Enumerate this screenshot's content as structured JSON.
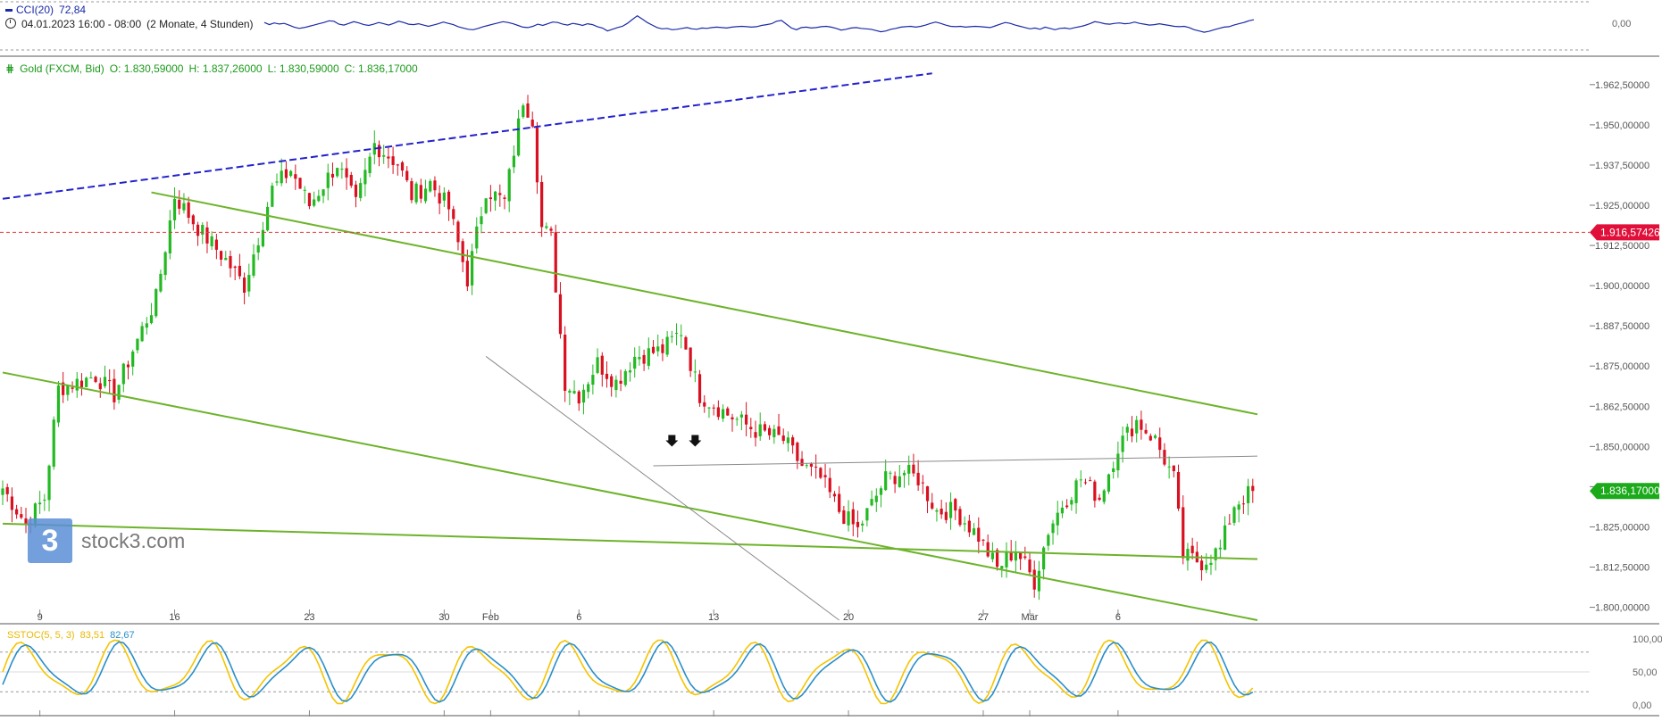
{
  "cci": {
    "name": "CCI(20)",
    "value": "72,84",
    "zero_label": "0,00",
    "range": "04.01.2023 16:00 - 08:00",
    "span": "(2 Monate, 4 Stunden)",
    "values": [
      40,
      15,
      35,
      22,
      30,
      8,
      -15,
      -30,
      -20,
      -5,
      10,
      25,
      40,
      60,
      55,
      20,
      10,
      30,
      50,
      35,
      15,
      5,
      20,
      40,
      25,
      10,
      30,
      55,
      40,
      20,
      15,
      25,
      10,
      -5,
      10,
      25,
      45,
      30,
      15,
      -10,
      -25,
      -40,
      -45,
      -30,
      -10,
      5,
      20,
      35,
      50,
      40,
      25,
      5,
      -15,
      -20,
      -5,
      20,
      5,
      25,
      45,
      40,
      20,
      10,
      30,
      20,
      5,
      25,
      15,
      -10,
      -25,
      -60,
      -40,
      -20,
      -5,
      30,
      75,
      120,
      80,
      40,
      10,
      -20,
      -35,
      -30,
      -45,
      -40,
      -30,
      -20,
      -35,
      -40,
      -25,
      -30,
      -20,
      -15,
      -20,
      -25,
      -15,
      -10,
      -5,
      -10,
      -15,
      -10,
      5,
      15,
      25,
      55,
      65,
      20,
      -25,
      -45,
      -20,
      -15,
      -25,
      -20,
      -10,
      -5,
      -15,
      -30,
      -50,
      -40,
      -25,
      -20,
      -30,
      -35,
      -40,
      -55,
      -70,
      -60,
      -40,
      -30,
      -15,
      -10,
      -5,
      -15,
      -5,
      10,
      30,
      45,
      30,
      10,
      -5,
      -10,
      -5,
      -15,
      -10,
      -5,
      -10,
      -15,
      -20,
      0,
      20,
      40,
      30,
      10,
      -5,
      -20,
      -35,
      -25,
      -40,
      -15,
      -30,
      -45,
      -30,
      -25,
      -35,
      -20,
      -10,
      5,
      25,
      50,
      40,
      25,
      20,
      30,
      35,
      25,
      30,
      45,
      30,
      20,
      10,
      15,
      25,
      15,
      5,
      -5,
      -10,
      -5,
      -20,
      -45,
      -60,
      -75,
      -65,
      -45,
      -30,
      -15,
      -10,
      10,
      25,
      40,
      60,
      72.84
    ],
    "ylim": [
      -200,
      200
    ]
  },
  "main": {
    "instrument": "Gold (FXCM, Bid)",
    "o": "O: 1.830,59000",
    "h": "H: 1.837,26000",
    "l": "L: 1.830,59000",
    "c": "C: 1.836,17000"
  },
  "stoch": {
    "name": "SSTOC(5, 5, 3)",
    "k_value": "83,51",
    "d_value": "82,67"
  },
  "brand": {
    "logo_text": "3",
    "text": "stock3.com"
  },
  "colors": {
    "up": "#22b922",
    "down": "#d81020",
    "cci": "#1a2aa8",
    "trend_green": "#6db32b",
    "trend_blue": "#2222cc",
    "trend_gray": "#8a8a8a",
    "resistance": "#e33a3a",
    "price_tag_red": "#e0103a",
    "price_tag_green": "#1aaa1a",
    "stoch_k": "#f5c400",
    "stoch_d": "#2a8ec8"
  },
  "chart_data": {
    "type": "candlestick",
    "y_axis_labels": [
      "1.962,50000",
      "1.950,00000",
      "1.937,50000",
      "1.925,00000",
      "1.912,50000",
      "1.900,00000",
      "1.887,50000",
      "1.875,00000",
      "1.862,50000",
      "1.850,00000",
      "1.837,50000",
      "1.825,00000",
      "1.812,50000",
      "1.800,00000"
    ],
    "y_axis_values": [
      1962.5,
      1950,
      1937.5,
      1925,
      1912.5,
      1900,
      1887.5,
      1875,
      1862.5,
      1850,
      1837.5,
      1825,
      1812.5,
      1800
    ],
    "ylim": [
      1796,
      1968
    ],
    "x_axis_labels": [
      "9",
      "16",
      "23",
      "30",
      "Feb",
      "6",
      "13",
      "20",
      "27",
      "Mär",
      "6"
    ],
    "x_tick_positions": [
      8,
      37,
      66,
      95,
      105,
      124,
      153,
      182,
      211,
      221,
      240
    ],
    "bar_count": 270,
    "tags": [
      {
        "label": "1.916,57426",
        "value": 1916.57426,
        "kind": "resistance"
      },
      {
        "label": "1.836,17000",
        "value": 1836.17,
        "kind": "last"
      }
    ],
    "anchors": [
      [
        0,
        1837
      ],
      [
        5,
        1826
      ],
      [
        9,
        1834
      ],
      [
        12,
        1868
      ],
      [
        20,
        1872
      ],
      [
        24,
        1866
      ],
      [
        28,
        1880
      ],
      [
        33,
        1896
      ],
      [
        37,
        1928
      ],
      [
        42,
        1918
      ],
      [
        48,
        1908
      ],
      [
        52,
        1900
      ],
      [
        58,
        1930
      ],
      [
        62,
        1936
      ],
      [
        66,
        1925
      ],
      [
        72,
        1938
      ],
      [
        76,
        1925
      ],
      [
        80,
        1944
      ],
      [
        85,
        1938
      ],
      [
        88,
        1928
      ],
      [
        92,
        1932
      ],
      [
        96,
        1924
      ],
      [
        100,
        1902
      ],
      [
        104,
        1930
      ],
      [
        108,
        1926
      ],
      [
        112,
        1958
      ],
      [
        114,
        1952
      ],
      [
        116,
        1918
      ],
      [
        118,
        1915
      ],
      [
        121,
        1870
      ],
      [
        124,
        1866
      ],
      [
        128,
        1876
      ],
      [
        132,
        1870
      ],
      [
        136,
        1878
      ],
      [
        142,
        1880
      ],
      [
        146,
        1886
      ],
      [
        150,
        1866
      ],
      [
        156,
        1860
      ],
      [
        162,
        1855
      ],
      [
        168,
        1852
      ],
      [
        172,
        1844
      ],
      [
        176,
        1840
      ],
      [
        180,
        1830
      ],
      [
        184,
        1824
      ],
      [
        187,
        1832
      ],
      [
        190,
        1840
      ],
      [
        194,
        1842
      ],
      [
        197,
        1840
      ],
      [
        201,
        1830
      ],
      [
        205,
        1830
      ],
      [
        210,
        1822
      ],
      [
        214,
        1812
      ],
      [
        218,
        1818
      ],
      [
        222,
        1808
      ],
      [
        225,
        1824
      ],
      [
        228,
        1832
      ],
      [
        232,
        1840
      ],
      [
        236,
        1834
      ],
      [
        240,
        1850
      ],
      [
        244,
        1858
      ],
      [
        248,
        1852
      ],
      [
        252,
        1840
      ],
      [
        254,
        1816
      ],
      [
        258,
        1814
      ],
      [
        262,
        1818
      ],
      [
        265,
        1832
      ],
      [
        269,
        1836.17
      ]
    ],
    "lines": [
      {
        "name": "blue-trendline",
        "style": "dashed",
        "color": "trend_blue",
        "p1": [
          0,
          1927
        ],
        "p2": [
          200,
          1966
        ]
      },
      {
        "name": "upper-channel-line",
        "style": "solid",
        "color": "trend_green",
        "p1": [
          32,
          1929
        ],
        "p2": [
          270,
          1860
        ]
      },
      {
        "name": "middle-channel-line",
        "style": "solid",
        "color": "trend_green",
        "p1": [
          0,
          1873
        ],
        "p2": [
          270,
          1796
        ]
      },
      {
        "name": "lower-support-line",
        "style": "solid",
        "color": "trend_green",
        "p1": [
          0,
          1826
        ],
        "p2": [
          270,
          1815
        ]
      },
      {
        "name": "gray-resistance-line",
        "style": "solid",
        "color": "trend_gray",
        "p1": [
          140,
          1844
        ],
        "p2": [
          270,
          1847
        ]
      },
      {
        "name": "gray-descending-line",
        "style": "solid",
        "color": "trend_gray",
        "p1": [
          104,
          1878
        ],
        "p2": [
          180,
          1796
        ]
      }
    ],
    "markers": [
      {
        "bar": 144,
        "value": 1848
      },
      {
        "bar": 149,
        "value": 1848
      }
    ]
  },
  "stoch_axis": {
    "labels": [
      "100,00",
      "50,00",
      "0,00"
    ],
    "values": [
      100,
      50,
      0
    ],
    "overbought": 80,
    "oversold": 20
  }
}
